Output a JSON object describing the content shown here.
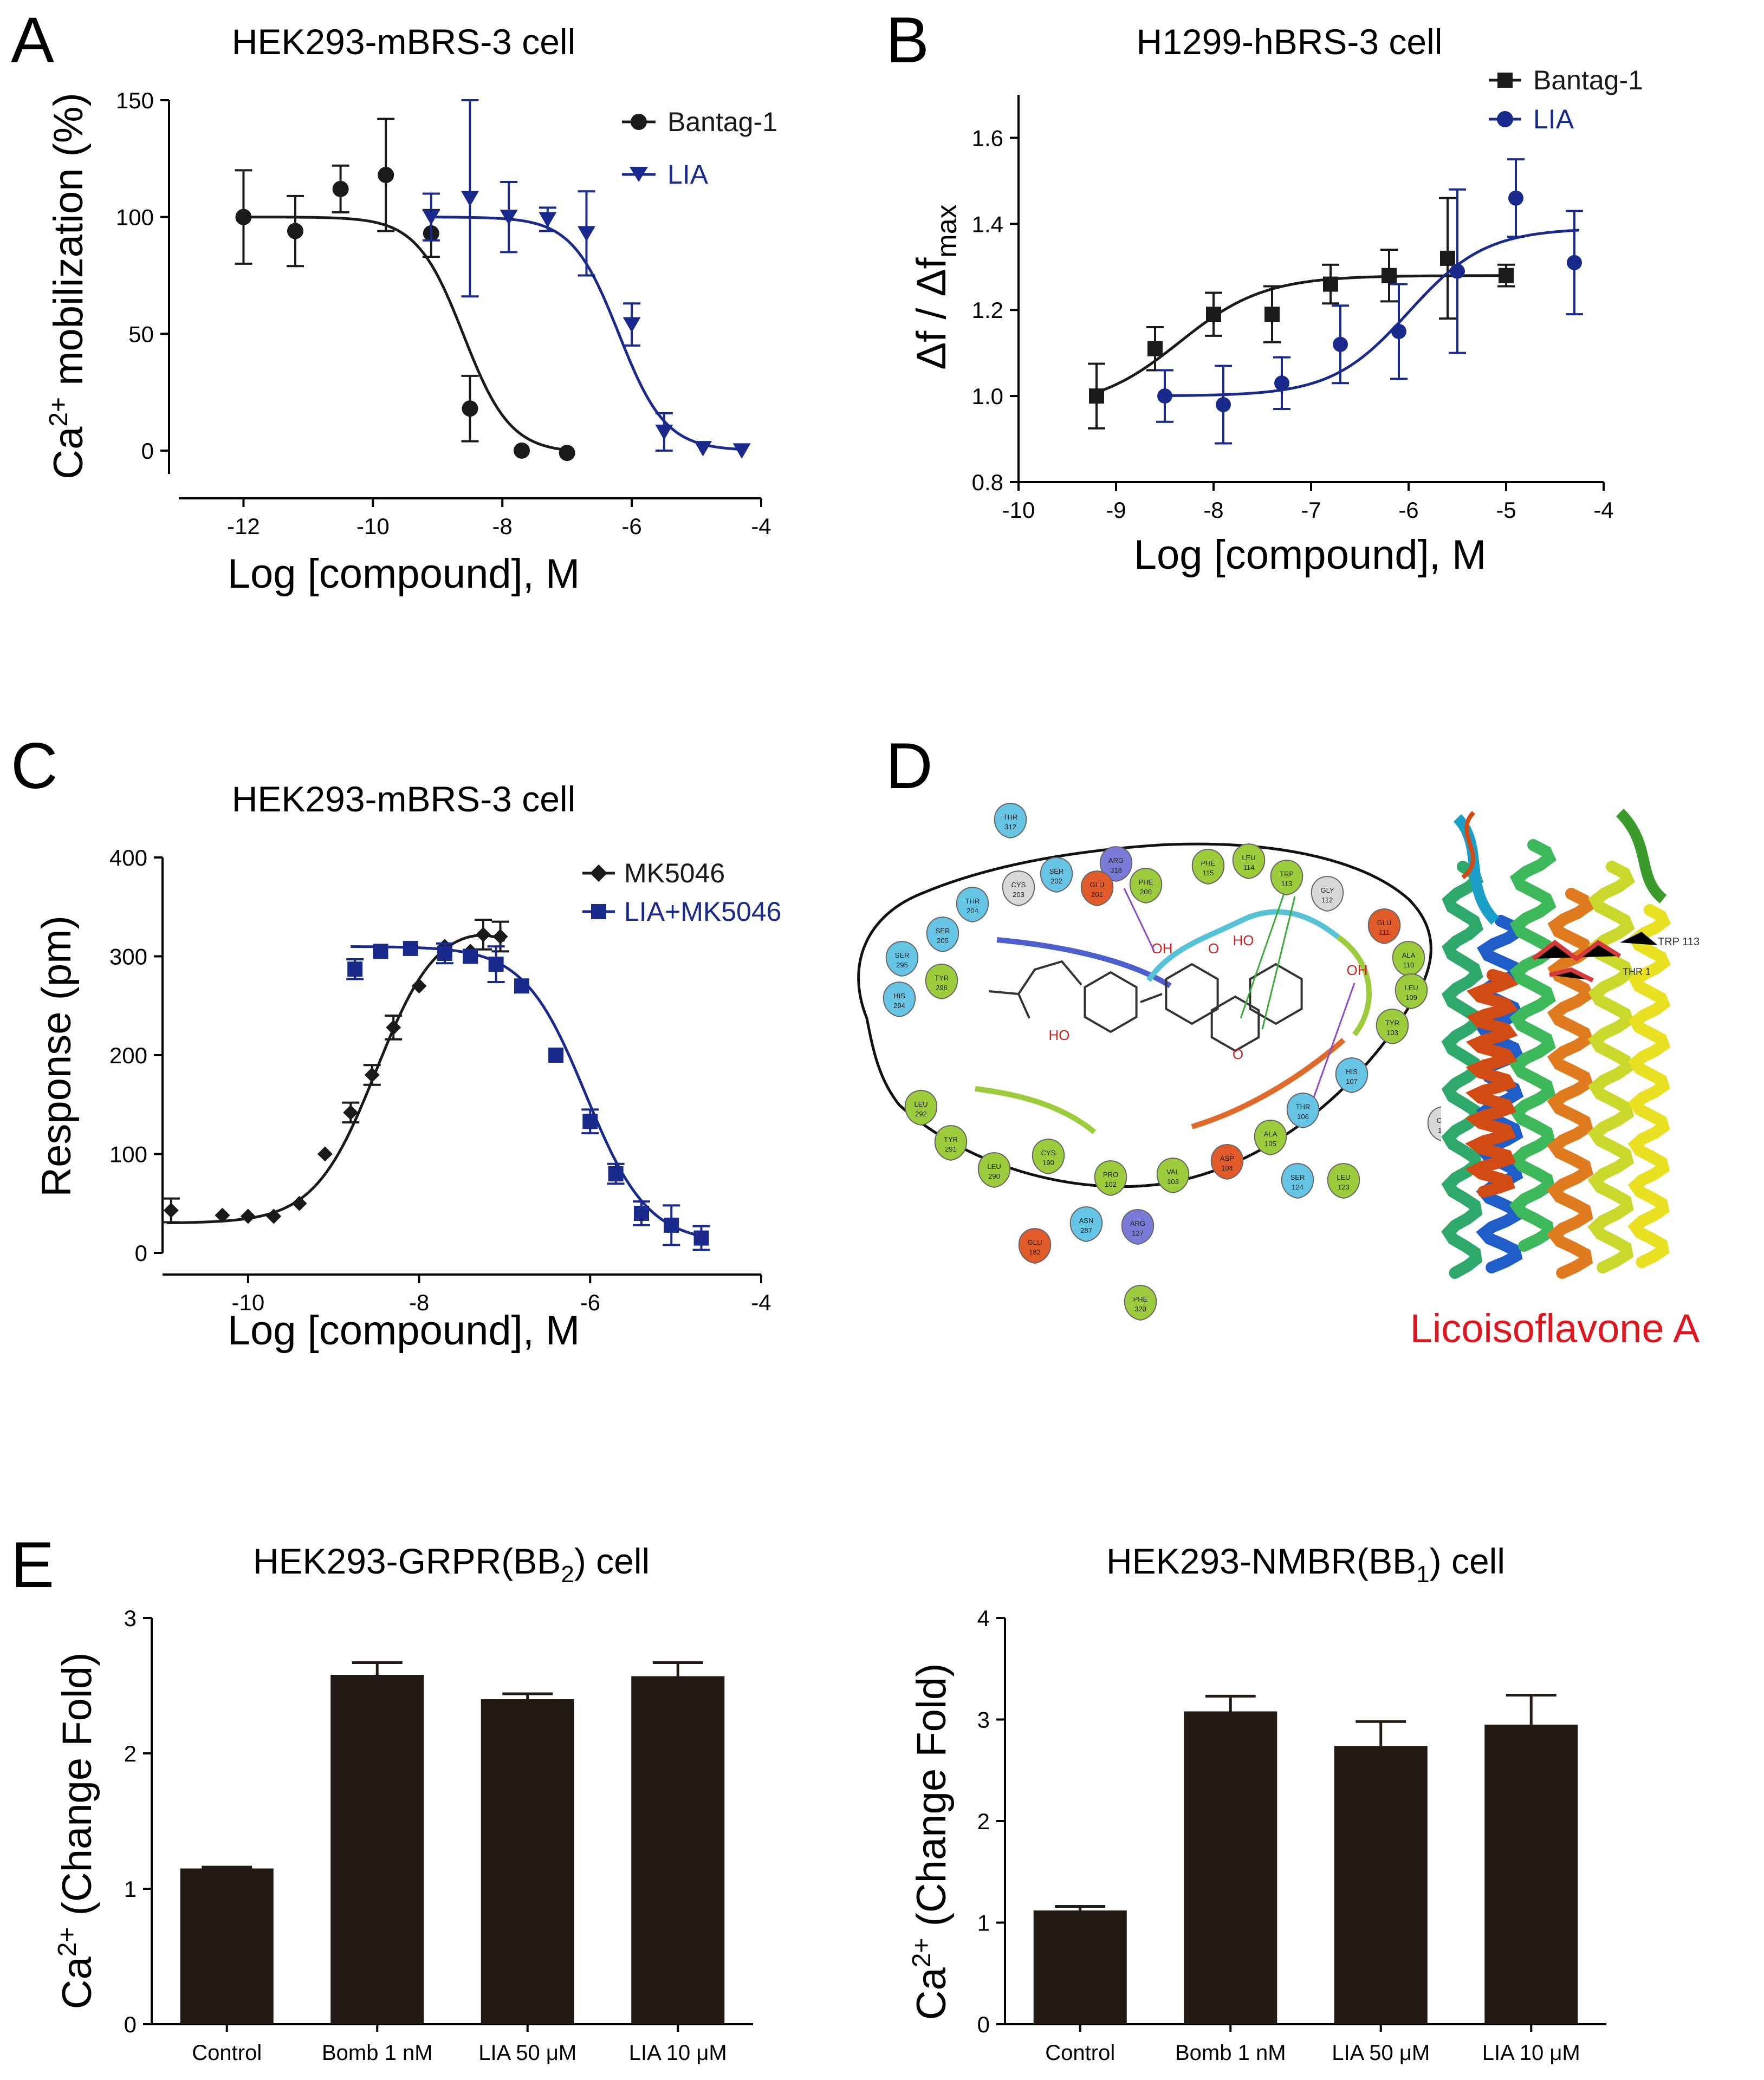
{
  "figure": {
    "panels": [
      "A",
      "B",
      "C",
      "D",
      "E"
    ]
  },
  "chart_data": [
    {
      "id": "A",
      "type": "scatter",
      "title": "HEK293-mBRS-3 cell",
      "xlabel": "Log [compound], M",
      "ylabel_main": "Ca",
      "ylabel_sup": "2+",
      "ylabel_rest": " mobilization  (%)",
      "xlim": [
        -13,
        -4
      ],
      "ylim": [
        -10,
        150
      ],
      "xticks": [
        -12,
        -10,
        -8,
        -6,
        -4
      ],
      "yticks": [
        0,
        50,
        100,
        150
      ],
      "series": [
        {
          "name": "Bantag-1",
          "color": "#1a1a1a",
          "marker": "circle",
          "x": [
            -12,
            -11.2,
            -10.5,
            -9.8,
            -9.1,
            -8.5,
            -7.7,
            -7.0
          ],
          "y": [
            100,
            94,
            112,
            118,
            93,
            18,
            0,
            -1
          ],
          "err": [
            20,
            15,
            10,
            24,
            10,
            14,
            0,
            0
          ],
          "fit": {
            "top": 100,
            "bottom": -1,
            "logEC50": -8.6,
            "hill": -1.2
          }
        },
        {
          "name": "LIA",
          "color": "#1a2a8c",
          "marker": "triangle-down",
          "x": [
            -9.1,
            -8.5,
            -7.9,
            -7.3,
            -6.7,
            -6.0,
            -5.5,
            -4.9,
            -4.3
          ],
          "y": [
            100,
            108,
            100,
            99,
            93,
            54,
            8,
            1,
            0
          ],
          "err": [
            10,
            42,
            15,
            5,
            18,
            9,
            8,
            0,
            0
          ],
          "fit": {
            "top": 100,
            "bottom": 0,
            "logEC50": -6.2,
            "hill": -1.2
          }
        }
      ]
    },
    {
      "id": "B",
      "type": "scatter",
      "title": "H1299-hBRS-3 cell",
      "xlabel": "Log [compound], M",
      "ylabel_main": "Δf / Δf",
      "ylabel_sub": "max",
      "xlim": [
        -10,
        -4
      ],
      "ylim": [
        0.8,
        1.7
      ],
      "xticks": [
        -10,
        -9,
        -8,
        -7,
        -6,
        -5,
        -4
      ],
      "yticks": [
        0.8,
        1.0,
        1.2,
        1.4,
        1.6
      ],
      "series": [
        {
          "name": "Bantag-1",
          "color": "#1a1a1a",
          "marker": "square",
          "x": [
            -9.2,
            -8.6,
            -8.0,
            -7.4,
            -6.8,
            -6.2,
            -5.6,
            -5.0
          ],
          "y": [
            1.0,
            1.11,
            1.19,
            1.19,
            1.26,
            1.28,
            1.32,
            1.28
          ],
          "err": [
            0.075,
            0.05,
            0.05,
            0.065,
            0.045,
            0.06,
            0.14,
            0.025
          ],
          "fit": {
            "top": 1.28,
            "bottom": 0.97,
            "logEC50": -8.35,
            "hill": 1.0
          }
        },
        {
          "name": "LIA",
          "color": "#1a2a8c",
          "marker": "circle",
          "x": [
            -8.5,
            -7.9,
            -7.3,
            -6.7,
            -6.1,
            -5.5,
            -4.9,
            -4.3
          ],
          "y": [
            1.0,
            0.98,
            1.03,
            1.12,
            1.15,
            1.29,
            1.46,
            1.31
          ],
          "err": [
            0.06,
            0.09,
            0.06,
            0.09,
            0.11,
            0.19,
            0.09,
            0.12
          ],
          "fit": {
            "top": 1.39,
            "bottom": 1.0,
            "logEC50": -6.0,
            "hill": 1.1
          }
        }
      ]
    },
    {
      "id": "C",
      "type": "scatter",
      "title": "HEK293-mBRS-3 cell",
      "xlabel": "Log [compound], M",
      "ylabel": "Response (pm)",
      "xlim": [
        -11,
        -4
      ],
      "ylim": [
        0,
        400
      ],
      "xticks": [
        -10,
        -8,
        -6,
        -4
      ],
      "yticks": [
        0,
        100,
        200,
        300,
        400
      ],
      "series": [
        {
          "name": "MK5046",
          "color": "#1a1a1a",
          "marker": "diamond",
          "x": [
            -10.9,
            -10.3,
            -10.0,
            -9.7,
            -9.4,
            -9.1,
            -8.8,
            -8.55,
            -8.3,
            -8.0,
            -7.7,
            -7.4,
            -7.25,
            -7.05
          ],
          "y": [
            43,
            38,
            37,
            37,
            50,
            100,
            142,
            180,
            228,
            270,
            310,
            305,
            322,
            320
          ],
          "err": [
            12,
            0,
            0,
            0,
            0,
            0,
            10,
            10,
            12,
            0,
            0,
            0,
            15,
            15
          ],
          "fit": {
            "type": "bell",
            "min": 30,
            "max": 340,
            "log1": -8.5,
            "log2": -6.1,
            "h1": 1.2,
            "h2": 1.3
          }
        },
        {
          "name": "LIA+MK5046",
          "color": "#1a2a8c",
          "marker": "square",
          "x": [
            -8.75,
            -8.45,
            -8.1,
            -7.7,
            -7.4,
            -7.1,
            -6.8,
            -6.4,
            -6.0,
            -5.7,
            -5.4,
            -5.05,
            -4.7
          ],
          "y": [
            287,
            305,
            308,
            303,
            300,
            292,
            270,
            200,
            133,
            80,
            40,
            28,
            15
          ],
          "err": [
            10,
            0,
            0,
            10,
            0,
            18,
            0,
            0,
            12,
            10,
            12,
            20,
            12
          ],
          "fit": {
            "top": 310,
            "bottom": 10,
            "logEC50": -6.05,
            "hill": -1.2
          }
        }
      ]
    },
    {
      "id": "E1",
      "type": "bar",
      "title_main": "HEK293-GRPR(BB",
      "title_sub": "2",
      "title_end": ") cell",
      "ylabel_main": "Ca",
      "ylabel_sup": "2+",
      "ylabel_rest": " (Change Fold)",
      "categories": [
        "Control",
        "Bomb 1 nM",
        "LIA 50 μM",
        "LIA 10 μM"
      ],
      "values": [
        1.15,
        2.58,
        2.4,
        2.57
      ],
      "err": [
        0.01,
        0.09,
        0.04,
        0.1
      ],
      "ylim": [
        0,
        3
      ],
      "yticks": [
        0,
        1,
        2,
        3
      ],
      "color": "#231a16"
    },
    {
      "id": "E2",
      "type": "bar",
      "title_main": "HEK293-NMBR(BB",
      "title_sub": "1",
      "title_end": ") cell",
      "ylabel_main": "Ca",
      "ylabel_sup": "2+",
      "ylabel_rest": " (Change Fold)",
      "categories": [
        "Control",
        "Bomb 1 nM",
        "LIA 50 μM",
        "LIA 10 μM"
      ],
      "values": [
        1.12,
        3.08,
        2.74,
        2.95
      ],
      "err": [
        0.04,
        0.15,
        0.24,
        0.29
      ],
      "ylim": [
        0,
        4
      ],
      "yticks": [
        0,
        1,
        2,
        3,
        4
      ],
      "color": "#231a16"
    }
  ],
  "panel_d": {
    "compound_name": "Licoisoflavone A",
    "residues": [
      "THR 312",
      "ARG 318",
      "PHE 115",
      "LEU 114",
      "TRP 113",
      "GLY 112",
      "SER 202",
      "CYS 203",
      "GLU 201",
      "PHE 200",
      "THR 204",
      "SER 205",
      "SER 295",
      "TYR 296",
      "HIS 294",
      "GLU 111",
      "ALA 110",
      "LEU 109",
      "TYR 103",
      "HIS 107",
      "THR 106",
      "CYS 120",
      "LEU 292",
      "TYR 291",
      "LEU 290",
      "CYS 190",
      "PRO 102",
      "VAL 103",
      "ASP 104",
      "ALA 105",
      "SER 124",
      "LEU 123",
      "ASN 287",
      "ARG 127",
      "GLU 182",
      "PHE 320"
    ],
    "residue_colors": {
      "hydrophobic": "#9ccc3c",
      "polar": "#66c4e4",
      "negative": "#e05a2a",
      "positive": "#7a7ad8",
      "glycine": "#d8d8d8"
    },
    "atom_labels": [
      "OH",
      "O",
      "HO",
      "OH",
      "HO",
      "O"
    ],
    "structure_labels": [
      "TRP 113",
      "THR 1"
    ]
  }
}
